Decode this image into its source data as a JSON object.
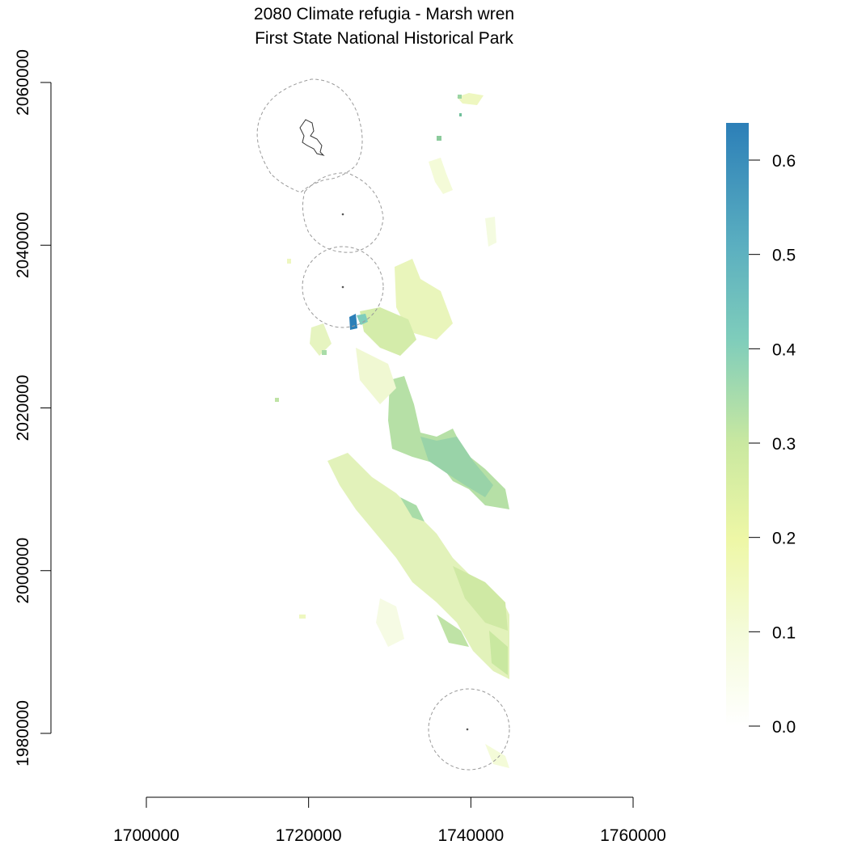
{
  "title": {
    "line1": "2080 Climate refugia - Marsh wren",
    "line2": "First State National Historical Park"
  },
  "map_data": {
    "type": "raster-map",
    "x_axis": {
      "range": [
        1690000,
        1760000
      ],
      "ticks": [
        1700000,
        1720000,
        1740000,
        1760000
      ],
      "tick_labels": [
        "1700000",
        "1720000",
        "1740000",
        "1760000"
      ]
    },
    "y_axis": {
      "range": [
        1980000,
        2060000
      ],
      "ticks": [
        1980000,
        2000000,
        2020000,
        2040000,
        2060000
      ],
      "tick_labels": [
        "1980000",
        "2000000",
        "2020000",
        "2040000",
        "2060000"
      ]
    },
    "legend": {
      "placement": "right",
      "min": 0.0,
      "max": 0.64,
      "tick_values": [
        0.0,
        0.1,
        0.2,
        0.3,
        0.4,
        0.5,
        0.6
      ],
      "tick_labels": [
        "0.0",
        "0.1",
        "0.2",
        "0.3",
        "0.4",
        "0.5",
        "0.6"
      ],
      "colors": [
        "#ffffff",
        "#f4fbd8",
        "#eef7a6",
        "#c9e8a0",
        "#7fcdbb",
        "#5aaec0",
        "#2c7fb8"
      ]
    },
    "park_buffers": [
      {
        "name": "northern-unit",
        "cx": 1720400,
        "cy": 2053500
      },
      {
        "name": "unit-2",
        "cx": 1724300,
        "cy": 2044000
      },
      {
        "name": "unit-3",
        "cx": 1724300,
        "cy": 2035000
      },
      {
        "name": "southern-unit",
        "cx": 1739800,
        "cy": 1980700
      }
    ],
    "buffer_radius": 5000
  }
}
